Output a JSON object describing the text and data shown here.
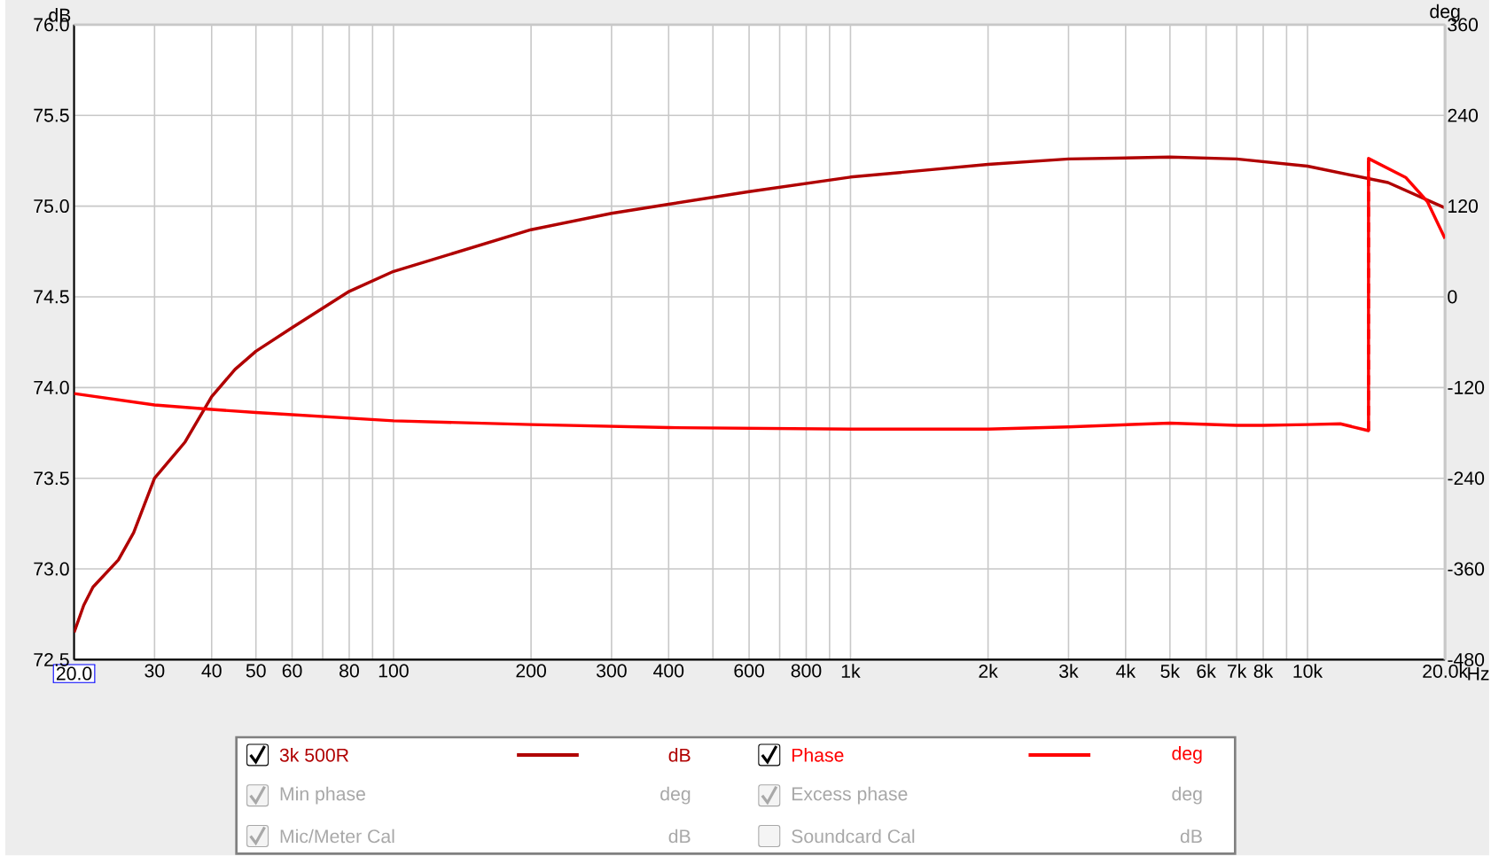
{
  "chart_data": {
    "type": "line",
    "ylabel": "dB",
    "y2label": "deg",
    "xlim": [
      20,
      20000
    ],
    "ylim": [
      72.5,
      76.0
    ],
    "y2lim": [
      -480,
      360
    ],
    "log": "x",
    "grid": true,
    "legend": "bottom",
    "marker": "none",
    "xticks": [
      {
        "value": 20,
        "label": "20.0"
      },
      30,
      40,
      50,
      60,
      {
        "value": 70,
        "label": null
      },
      80,
      {
        "value": 90,
        "label": null
      },
      100,
      200,
      300,
      400,
      {
        "value": 500,
        "label": null
      },
      600,
      {
        "value": 700,
        "label": null
      },
      800,
      {
        "value": 900,
        "label": null
      },
      {
        "value": 1000,
        "label": "1k"
      },
      {
        "value": 2000,
        "label": "2k"
      },
      {
        "value": 3000,
        "label": "3k"
      },
      {
        "value": 4000,
        "label": "4k"
      },
      {
        "value": 5000,
        "label": "5k"
      },
      {
        "value": 6000,
        "label": "6k"
      },
      {
        "value": 7000,
        "label": "7k"
      },
      {
        "value": 8000,
        "label": "8k"
      },
      {
        "value": 9000,
        "label": null
      },
      {
        "value": 10000,
        "label": "10k"
      },
      {
        "value": 20000,
        "label": "20.0k"
      }
    ],
    "xlabel": "Hz",
    "yticks": [
      72.5,
      {
        "value": 73,
        "label": "73.0"
      },
      73.5,
      {
        "value": 74,
        "label": "74.0"
      },
      74.5,
      {
        "value": 75,
        "label": "75.0"
      },
      75.5,
      {
        "value": 76,
        "label": "76.0"
      }
    ],
    "y2ticks": [
      -480,
      -360,
      -240,
      -120,
      0,
      120,
      240,
      360
    ],
    "series": [
      {
        "name": "3k 500R",
        "color": "#b00000",
        "line_style": "solid",
        "x": [
          20,
          21,
          22,
          25,
          27,
          30,
          35,
          40,
          45,
          50,
          60,
          80,
          100,
          200,
          300,
          400,
          600,
          1000,
          2000,
          3000,
          5000,
          7000,
          10000,
          15000,
          20000
        ],
        "values": [
          72.65,
          72.8,
          72.9,
          73.05,
          73.2,
          73.5,
          73.7,
          73.95,
          74.1,
          74.2,
          74.33,
          74.53,
          74.64,
          74.87,
          74.96,
          75.01,
          75.08,
          75.16,
          75.23,
          75.26,
          75.27,
          75.26,
          75.22,
          75.13,
          74.99
        ]
      },
      {
        "name": "Phase",
        "color": "#ff0000",
        "axis": "y2",
        "line_style": "solid",
        "x": [
          20,
          30,
          40,
          50,
          100,
          200,
          400,
          1000,
          2000,
          3000,
          5000,
          7000,
          8000,
          10000,
          11800,
          13600,
          13600,
          16400,
          18300,
          20000
        ],
        "values": [
          -128,
          -143,
          -149,
          -153,
          -164,
          -169,
          -173,
          -175,
          -175,
          -172,
          -167,
          -170,
          -170,
          -169,
          -168,
          -177,
          183,
          158,
          126,
          77
        ]
      },
      {
        "color": "#ff0000",
        "axis": "y2",
        "line_style": "dashed",
        "x": [
          13600,
          13600
        ],
        "values": [
          -177,
          183
        ]
      }
    ],
    "annotations": [
      "Min phase",
      "deg",
      "Excess phase",
      "deg",
      "Mic/Meter Cal",
      "dB",
      "Soundcard Cal",
      "dB"
    ]
  }
}
